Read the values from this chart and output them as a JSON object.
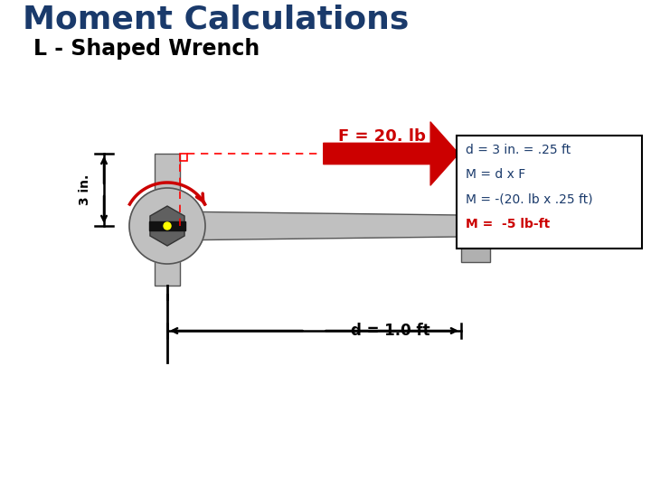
{
  "title": "Moment Calculations",
  "subtitle": "L - Shaped Wrench",
  "title_color": "#1a3a6b",
  "bg_color": "#ffffff",
  "force_label": "F = 20. lb",
  "force_color": "#cc0000",
  "dim_label": "d = 1.0 ft",
  "vert_dim_label": "3 in.",
  "box_lines": [
    "d = 3 in. = .25 ft",
    "M = d x F",
    "M = -(20. lb x .25 ft)",
    "M =  -5 lb-ft"
  ],
  "box_line_colors": [
    "#1a3a6b",
    "#1a3a6b",
    "#1a3a6b",
    "#cc0000"
  ],
  "wrench_gray": "#c0c0c0",
  "wrench_gray2": "#b0b0b0",
  "dark_gray": "#555555",
  "nut_color": "#606060",
  "yellow": "#ffff00",
  "bar_black": "#111111"
}
